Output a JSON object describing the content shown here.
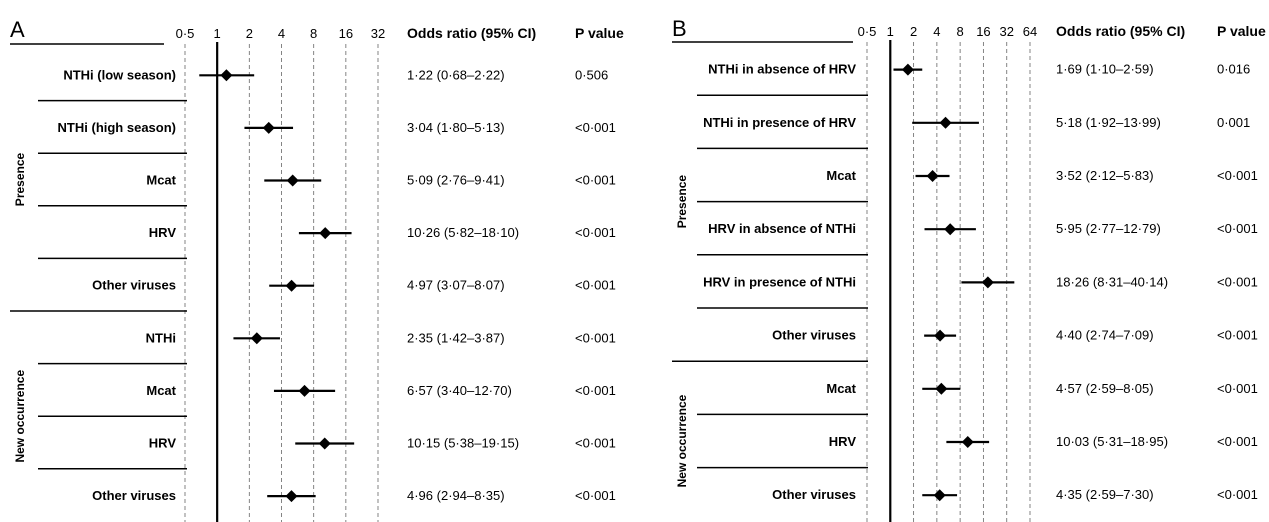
{
  "chart_data": [
    {
      "type": "forest",
      "panel": "A",
      "x_scale": "log2",
      "x_ticks": [
        "0·5",
        "1",
        "2",
        "4",
        "8",
        "16",
        "32"
      ],
      "x_tick_values": [
        0.5,
        1,
        2,
        4,
        8,
        16,
        32
      ],
      "reference_line": 1,
      "columns": [
        "Odds ratio (95% CI)",
        "P value"
      ],
      "groups": [
        {
          "label": "Presence",
          "rows": [
            0,
            4
          ]
        },
        {
          "label": "New occurrence",
          "rows": [
            5,
            8
          ]
        }
      ],
      "rows": [
        {
          "label": "NTHi (low season)",
          "or": 1.22,
          "lo": 0.68,
          "hi": 2.22,
          "ci_text": "1·22 (0·68–2·22)",
          "p": "0·506"
        },
        {
          "label": "NTHi (high season)",
          "or": 3.04,
          "lo": 1.8,
          "hi": 5.13,
          "ci_text": "3·04 (1·80–5·13)",
          "p": "<0·001"
        },
        {
          "label": "Mcat",
          "or": 5.09,
          "lo": 2.76,
          "hi": 9.41,
          "ci_text": "5·09 (2·76–9·41)",
          "p": "<0·001"
        },
        {
          "label": "HRV",
          "or": 10.26,
          "lo": 5.82,
          "hi": 18.1,
          "ci_text": "10·26 (5·82–18·10)",
          "p": "<0·001"
        },
        {
          "label": "Other viruses",
          "or": 4.97,
          "lo": 3.07,
          "hi": 8.07,
          "ci_text": "4·97 (3·07–8·07)",
          "p": "<0·001"
        },
        {
          "label": "NTHi",
          "or": 2.35,
          "lo": 1.42,
          "hi": 3.87,
          "ci_text": "2·35 (1·42–3·87)",
          "p": "<0·001"
        },
        {
          "label": "Mcat",
          "or": 6.57,
          "lo": 3.4,
          "hi": 12.7,
          "ci_text": "6·57 (3·40–12·70)",
          "p": "<0·001"
        },
        {
          "label": "HRV",
          "or": 10.15,
          "lo": 5.38,
          "hi": 19.15,
          "ci_text": "10·15 (5·38–19·15)",
          "p": "<0·001"
        },
        {
          "label": "Other viruses",
          "or": 4.96,
          "lo": 2.94,
          "hi": 8.35,
          "ci_text": "4·96 (2·94–8·35)",
          "p": "<0·001"
        }
      ]
    },
    {
      "type": "forest",
      "panel": "B",
      "x_scale": "log2",
      "x_ticks": [
        "0·5",
        "1",
        "2",
        "4",
        "8",
        "16",
        "32",
        "64"
      ],
      "x_tick_values": [
        0.5,
        1,
        2,
        4,
        8,
        16,
        32,
        64
      ],
      "reference_line": 1,
      "columns": [
        "Odds ratio (95% CI)",
        "P value"
      ],
      "groups": [
        {
          "label": "Presence",
          "rows": [
            0,
            5
          ]
        },
        {
          "label": "New occurrence",
          "rows": [
            6,
            8
          ]
        }
      ],
      "rows": [
        {
          "label": "NTHi in absence of HRV",
          "or": 1.69,
          "lo": 1.1,
          "hi": 2.59,
          "ci_text": "1·69 (1·10–2·59)",
          "p": "0·016"
        },
        {
          "label": "NTHi in presence of HRV",
          "or": 5.18,
          "lo": 1.92,
          "hi": 13.99,
          "ci_text": "5·18 (1·92–13·99)",
          "p": "0·001"
        },
        {
          "label": "Mcat",
          "or": 3.52,
          "lo": 2.12,
          "hi": 5.83,
          "ci_text": "3·52 (2·12–5·83)",
          "p": "<0·001"
        },
        {
          "label": "HRV in absence of NTHi",
          "or": 5.95,
          "lo": 2.77,
          "hi": 12.79,
          "ci_text": "5·95 (2·77–12·79)",
          "p": "<0·001"
        },
        {
          "label": "HRV in presence of NTHi",
          "or": 18.26,
          "lo": 8.31,
          "hi": 40.14,
          "ci_text": "18·26 (8·31–40·14)",
          "p": "<0·001"
        },
        {
          "label": "Other viruses",
          "or": 4.4,
          "lo": 2.74,
          "hi": 7.09,
          "ci_text": "4·40 (2·74–7·09)",
          "p": "<0·001"
        },
        {
          "label": "Mcat",
          "or": 4.57,
          "lo": 2.59,
          "hi": 8.05,
          "ci_text": "4·57 (2·59–8·05)",
          "p": "<0·001"
        },
        {
          "label": "HRV",
          "or": 10.03,
          "lo": 5.31,
          "hi": 18.95,
          "ci_text": "10·03 (5·31–18·95)",
          "p": "<0·001"
        },
        {
          "label": "Other viruses",
          "or": 4.35,
          "lo": 2.59,
          "hi": 7.3,
          "ci_text": "4·35 (2·59–7·30)",
          "p": "<0·001"
        }
      ]
    }
  ]
}
